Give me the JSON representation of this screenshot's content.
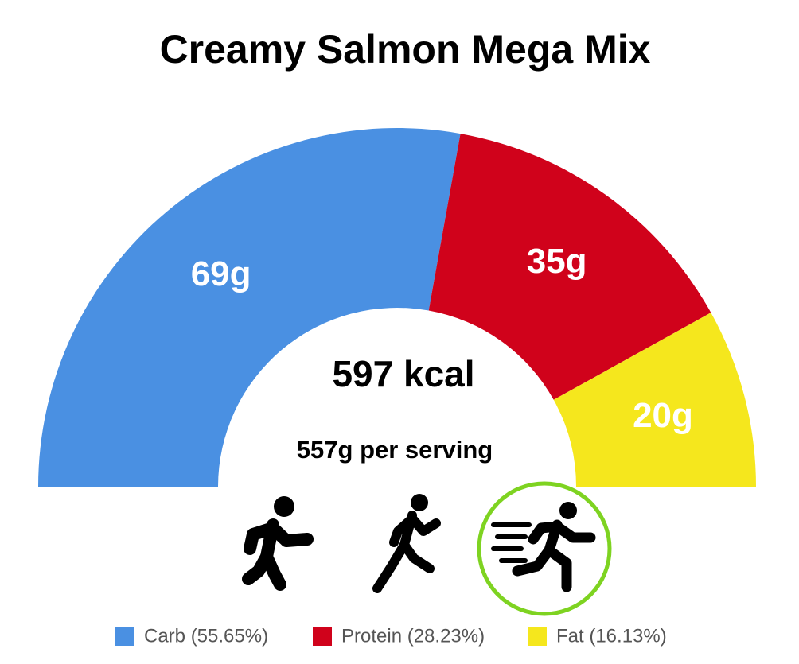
{
  "chart_data": {
    "type": "semi-donut",
    "title": "Creamy Salmon Mega Mix",
    "categories": [
      "Carb (55.65%)",
      "Protein (28.23%)",
      "Fat (16.13%)"
    ],
    "values": [
      69,
      35,
      20
    ],
    "value_labels": [
      "69g",
      "35g",
      "20g"
    ],
    "colors": [
      "#4a90e2",
      "#d0021b",
      "#f5e71d"
    ],
    "center_title": "597 kcal",
    "center_subtitle": "557g per serving"
  }
}
